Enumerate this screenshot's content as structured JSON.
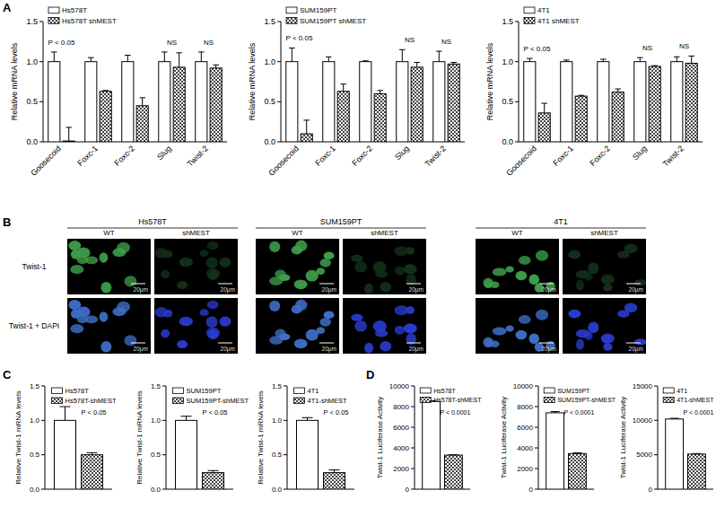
{
  "panel_labels": [
    "A",
    "B",
    "C",
    "D"
  ],
  "image_panel": {
    "cell_lines": [
      "Hs578T",
      "SUM159PT",
      "4T1"
    ],
    "conditions": [
      "WT",
      "shMEST"
    ],
    "rows": [
      "Twist-1",
      "Twist-1 + DAPI"
    ],
    "scale_bar": "20μm"
  },
  "chart_data": [
    {
      "type": "bar",
      "y_label": "Relative mRNA levels",
      "categories": [
        "Goosecoid",
        "Foxc-1",
        "Foxc-2",
        "Slug",
        "Twist-2"
      ],
      "series": [
        {
          "name": "Hs578T",
          "color": "#ffffff",
          "values": [
            1,
            1,
            1,
            1,
            1
          ],
          "errors": [
            0.12,
            0.05,
            0.08,
            0.12,
            0.12
          ]
        },
        {
          "name": "Hs578T shMEST",
          "color": "#444444",
          "values": [
            0.01,
            0.63,
            0.45,
            0.93,
            0.92
          ],
          "errors": [
            0.17,
            0.01,
            0.1,
            0.18,
            0.04
          ]
        }
      ],
      "ylim": [
        0,
        1.5
      ],
      "yticks": [
        {
          "value": 0,
          "label": "0.0"
        },
        {
          "value": 0.5,
          "label": "0.5"
        },
        {
          "value": 1,
          "label": "1.0"
        },
        {
          "value": 1.5,
          "label": "1.5"
        }
      ],
      "legend": "upper left",
      "annotations": [
        {
          "text": "P < 0.05",
          "category": "Goosecoid"
        },
        {
          "text": "NS",
          "category": "Slug"
        },
        {
          "text": "NS",
          "category": "Twist-2"
        }
      ]
    },
    {
      "type": "bar",
      "y_label": "Relative mRNA levels",
      "categories": [
        "Goosecoid",
        "Foxc-1",
        "Foxc-2",
        "Slug",
        "Twist-2"
      ],
      "series": [
        {
          "name": "SUM159PT",
          "color": "#ffffff",
          "values": [
            1,
            1,
            1,
            1,
            1
          ],
          "errors": [
            0.17,
            0.06,
            0.01,
            0.15,
            0.13
          ]
        },
        {
          "name": "SUM159PT shMEST",
          "color": "#444444",
          "values": [
            0.1,
            0.63,
            0.6,
            0.93,
            0.97
          ],
          "errors": [
            0.17,
            0.09,
            0.04,
            0.06,
            0.02
          ]
        }
      ],
      "ylim": [
        0,
        1.5
      ],
      "yticks": [
        {
          "value": 0,
          "label": "0.0"
        },
        {
          "value": 0.5,
          "label": "0.5"
        },
        {
          "value": 1,
          "label": "1.0"
        },
        {
          "value": 1.5,
          "label": "1.5"
        }
      ],
      "legend": "upper left",
      "annotations": [
        {
          "text": "P < 0.05",
          "category": "Goosecoid"
        },
        {
          "text": "NS",
          "category": "Slug"
        },
        {
          "text": "NS",
          "category": "Twist-2"
        }
      ]
    },
    {
      "type": "bar",
      "y_label": "Relative mRNA levels",
      "categories": [
        "Goosecoid",
        "Foxc-1",
        "Foxc-2",
        "Slug",
        "Twist-2"
      ],
      "series": [
        {
          "name": "4T1",
          "color": "#ffffff",
          "values": [
            1,
            1,
            1,
            1,
            1
          ],
          "errors": [
            0.04,
            0.02,
            0.03,
            0.05,
            0.06
          ]
        },
        {
          "name": "4T1 shMEST",
          "color": "#444444",
          "values": [
            0.36,
            0.57,
            0.62,
            0.94,
            0.98
          ],
          "errors": [
            0.12,
            0.01,
            0.04,
            0.01,
            0.09
          ]
        }
      ],
      "ylim": [
        0,
        1.5
      ],
      "yticks": [
        {
          "value": 0,
          "label": "0.0"
        },
        {
          "value": 0.5,
          "label": "0.5"
        },
        {
          "value": 1,
          "label": "1.0"
        },
        {
          "value": 1.5,
          "label": "1.5"
        }
      ],
      "legend": "upper left",
      "annotations": [
        {
          "text": "P < 0.05",
          "category": "Goosecoid"
        },
        {
          "text": "NS",
          "category": "Slug"
        },
        {
          "text": "NS",
          "category": "Twist-2"
        }
      ]
    },
    {
      "type": "bar",
      "y_label": "Relative Twist-1 mRNA levels",
      "categories": [
        null
      ],
      "series": [
        {
          "name": "Hs578T",
          "color": "#ffffff",
          "values": [
            1
          ],
          "errors": [
            0.2
          ]
        },
        {
          "name": "Hs578T-shMEST",
          "color": "#444444",
          "values": [
            0.5
          ],
          "errors": [
            0.03
          ]
        }
      ],
      "ylim": [
        0,
        1.5
      ],
      "yticks": [
        {
          "value": 0,
          "label": "0.0"
        },
        {
          "value": 0.5,
          "label": "0.5"
        },
        {
          "value": 1,
          "label": "1.0"
        },
        {
          "value": 1.5,
          "label": "1.5"
        }
      ],
      "legend": "upper center",
      "annotations": [
        {
          "text": "P < 0.05"
        }
      ]
    },
    {
      "type": "bar",
      "y_label": "Relative Twist-1 mRNA levels",
      "categories": [
        null
      ],
      "series": [
        {
          "name": "SUM159PT",
          "color": "#ffffff",
          "values": [
            1
          ],
          "errors": [
            0.06
          ]
        },
        {
          "name": "SUM159PT-shMEST",
          "color": "#444444",
          "values": [
            0.24
          ],
          "errors": [
            0.03
          ]
        }
      ],
      "ylim": [
        0,
        1.5
      ],
      "yticks": [
        {
          "value": 0,
          "label": "0.0"
        },
        {
          "value": 0.5,
          "label": "0.5"
        },
        {
          "value": 1,
          "label": "1.0"
        },
        {
          "value": 1.5,
          "label": "1.5"
        }
      ],
      "legend": "upper center",
      "annotations": [
        {
          "text": "P < 0.05"
        }
      ]
    },
    {
      "type": "bar",
      "y_label": "Relative Twist-1 mRNA levels",
      "categories": [
        null
      ],
      "series": [
        {
          "name": "4T1",
          "color": "#ffffff",
          "values": [
            1
          ],
          "errors": [
            0.04
          ]
        },
        {
          "name": "4T1-shMEST",
          "color": "#444444",
          "values": [
            0.24
          ],
          "errors": [
            0.04
          ]
        }
      ],
      "ylim": [
        0,
        1.5
      ],
      "yticks": [
        {
          "value": 0,
          "label": "0.0"
        },
        {
          "value": 0.5,
          "label": "0.5"
        },
        {
          "value": 1,
          "label": "1.0"
        },
        {
          "value": 1.5,
          "label": "1.5"
        }
      ],
      "legend": "upper center",
      "annotations": [
        {
          "text": "P < 0.05"
        }
      ]
    },
    {
      "type": "bar",
      "y_label": "Twist-1 Luciferase Activity",
      "categories": [
        null
      ],
      "series": [
        {
          "name": "Hs578T",
          "color": "#ffffff",
          "values": [
            8500
          ],
          "errors": [
            60
          ]
        },
        {
          "name": "Hs578T-shMEST",
          "color": "#444444",
          "values": [
            3300
          ],
          "errors": [
            50
          ]
        }
      ],
      "ylim": [
        0,
        10000
      ],
      "yticks": [
        0,
        2000,
        4000,
        6000,
        8000,
        10000
      ],
      "legend": "upper center",
      "annotations": [
        {
          "text": "P < 0.0001"
        }
      ]
    },
    {
      "type": "bar",
      "y_label": "Twist-1 Luciferase Activity",
      "categories": [
        null
      ],
      "series": [
        {
          "name": "SUM159PT",
          "color": "#ffffff",
          "values": [
            7400
          ],
          "errors": [
            120
          ]
        },
        {
          "name": "SUM159PT-shMEST",
          "color": "#444444",
          "values": [
            3450
          ],
          "errors": [
            80
          ]
        }
      ],
      "ylim": [
        0,
        10000
      ],
      "yticks": [
        0,
        2000,
        4000,
        6000,
        8000,
        10000
      ],
      "legend": "upper center",
      "annotations": [
        {
          "text": "P < 0.0001"
        }
      ]
    },
    {
      "type": "bar",
      "y_label": "Twist-1 Luciferase Activity",
      "categories": [
        null
      ],
      "series": [
        {
          "name": "4T1",
          "color": "#ffffff",
          "values": [
            10200
          ],
          "errors": [
            100
          ]
        },
        {
          "name": "4T1-shMEST",
          "color": "#444444",
          "values": [
            5100
          ],
          "errors": [
            80
          ]
        }
      ],
      "ylim": [
        0,
        15000
      ],
      "yticks": [
        0,
        5000,
        10000,
        15000
      ],
      "legend": "upper center",
      "annotations": [
        {
          "text": "P < 0.0001"
        }
      ]
    }
  ]
}
